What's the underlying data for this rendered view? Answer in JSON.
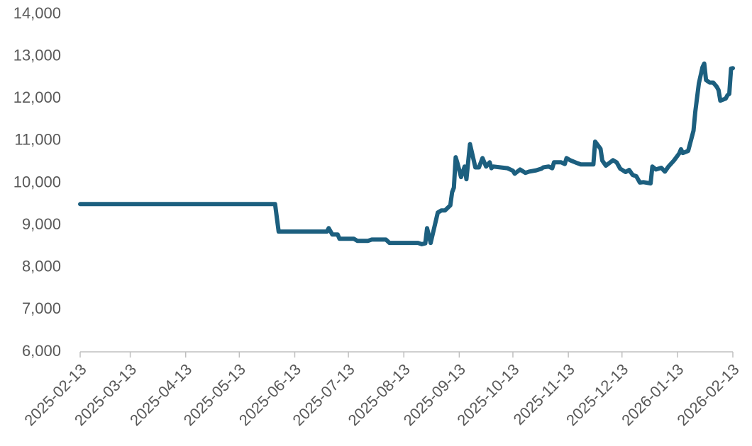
{
  "chart_data": {
    "type": "line",
    "x": [
      "2025-02-13",
      "2025-06-02",
      "2025-06-04",
      "2025-07-01",
      "2025-07-02",
      "2025-07-04",
      "2025-07-07",
      "2025-07-08",
      "2025-07-16",
      "2025-07-18",
      "2025-07-24",
      "2025-07-26",
      "2025-08-03",
      "2025-08-05",
      "2025-08-21",
      "2025-08-23",
      "2025-08-25",
      "2025-08-26",
      "2025-08-28",
      "2025-09-01",
      "2025-09-03",
      "2025-09-05",
      "2025-09-08",
      "2025-09-09",
      "2025-09-10",
      "2025-09-11",
      "2025-09-12",
      "2025-09-14",
      "2025-09-16",
      "2025-09-17",
      "2025-09-19",
      "2025-09-20",
      "2025-09-22",
      "2025-09-24",
      "2025-09-26",
      "2025-09-28",
      "2025-09-30",
      "2025-10-01",
      "2025-10-02",
      "2025-10-10",
      "2025-10-13",
      "2025-10-14",
      "2025-10-17",
      "2025-10-20",
      "2025-10-22",
      "2025-10-26",
      "2025-10-29",
      "2025-10-30",
      "2025-11-02",
      "2025-11-04",
      "2025-11-05",
      "2025-11-09",
      "2025-11-11",
      "2025-11-12",
      "2025-11-14",
      "2025-11-18",
      "2025-11-20",
      "2025-11-27",
      "2025-11-28",
      "2025-12-01",
      "2025-12-02",
      "2025-12-04",
      "2025-12-08",
      "2025-12-10",
      "2025-12-12",
      "2025-12-15",
      "2025-12-17",
      "2025-12-19",
      "2025-12-21",
      "2025-12-23",
      "2025-12-25",
      "2025-12-29",
      "2025-12-30",
      "2026-01-01",
      "2026-01-04",
      "2026-01-06",
      "2026-01-08",
      "2026-01-11",
      "2026-01-14",
      "2026-01-15",
      "2026-01-16",
      "2026-01-19",
      "2026-01-22",
      "2026-01-23",
      "2026-01-25",
      "2026-01-27",
      "2026-01-28",
      "2026-01-29",
      "2026-01-31",
      "2026-02-02",
      "2026-02-04",
      "2026-02-05",
      "2026-02-06",
      "2026-02-09",
      "2026-02-10",
      "2026-02-11",
      "2026-02-12",
      "2026-02-13"
    ],
    "series": [
      {
        "color": "#1c5f7f",
        "values": [
          9500,
          9500,
          8850,
          8850,
          8930,
          8780,
          8780,
          8680,
          8680,
          8630,
          8630,
          8660,
          8660,
          8580,
          8580,
          8550,
          8570,
          8930,
          8580,
          9300,
          9350,
          9350,
          9470,
          9780,
          9890,
          10610,
          10470,
          10140,
          10390,
          10090,
          10920,
          10740,
          10370,
          10370,
          10590,
          10390,
          10490,
          10350,
          10390,
          10350,
          10290,
          10220,
          10320,
          10240,
          10270,
          10300,
          10340,
          10370,
          10390,
          10350,
          10490,
          10490,
          10450,
          10590,
          10540,
          10470,
          10440,
          10440,
          10980,
          10810,
          10530,
          10410,
          10540,
          10490,
          10340,
          10260,
          10310,
          10190,
          10160,
          10010,
          10020,
          9990,
          10390,
          10320,
          10360,
          10270,
          10390,
          10530,
          10700,
          10800,
          10710,
          10760,
          11240,
          11690,
          12360,
          12740,
          12830,
          12440,
          12380,
          12380,
          12280,
          12200,
          11950,
          12000,
          12080,
          12110,
          12710,
          12720
        ]
      }
    ],
    "xlim": [
      "2025-02-13",
      "2026-02-13"
    ],
    "xticks": [
      "2025-02-13",
      "2025-03-13",
      "2025-04-13",
      "2025-05-13",
      "2025-06-13",
      "2025-07-13",
      "2025-08-13",
      "2025-09-13",
      "2025-10-13",
      "2025-11-13",
      "2025-12-13",
      "2026-01-13",
      "2026-02-13"
    ],
    "ylim": [
      6000,
      14000
    ],
    "yticks": [
      {
        "value": 6000,
        "label": "6,000"
      },
      {
        "value": 7000,
        "label": "7,000"
      },
      {
        "value": 8000,
        "label": "8,000"
      },
      {
        "value": 9000,
        "label": "9,000"
      },
      {
        "value": 10000,
        "label": "10,000"
      },
      {
        "value": 11000,
        "label": "11,000"
      },
      {
        "value": 12000,
        "label": "12,000"
      },
      {
        "value": 13000,
        "label": "13,000"
      },
      {
        "value": 14000,
        "label": "14,000"
      }
    ],
    "grid": false
  }
}
